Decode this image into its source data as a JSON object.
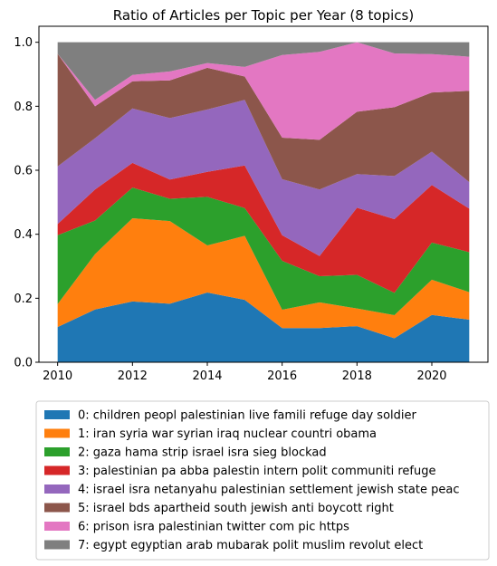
{
  "chart_data": {
    "type": "area",
    "stacked": true,
    "title": "Ratio of Articles per Topic per Year (8 topics)",
    "xlabel": "",
    "ylabel": "",
    "x": [
      2010,
      2011,
      2012,
      2013,
      2014,
      2015,
      2016,
      2017,
      2018,
      2019,
      2020,
      2021
    ],
    "xlim": [
      2009.5,
      2021.5
    ],
    "ylim": [
      0,
      1.05
    ],
    "xticks": [
      2010,
      2012,
      2014,
      2016,
      2018,
      2020
    ],
    "yticks": [
      0.0,
      0.2,
      0.4,
      0.6,
      0.8,
      1.0
    ],
    "xtick_labels": [
      "2010",
      "2012",
      "2014",
      "2016",
      "2018",
      "2020"
    ],
    "ytick_labels": [
      "0.0",
      "0.2",
      "0.4",
      "0.6",
      "0.8",
      "1.0"
    ],
    "grid": false,
    "legend_position": "below",
    "series": [
      {
        "name": "0: children peopl palestinian live famili refuge day soldier",
        "color": "#1f77b4",
        "values": [
          0.11,
          0.165,
          0.19,
          0.183,
          0.218,
          0.195,
          0.107,
          0.107,
          0.113,
          0.075,
          0.148,
          0.133
        ]
      },
      {
        "name": "1: iran syria war syrian iraq nuclear countri obama",
        "color": "#ff7f0e",
        "values": [
          0.072,
          0.173,
          0.26,
          0.258,
          0.147,
          0.2,
          0.057,
          0.08,
          0.055,
          0.072,
          0.11,
          0.086
        ]
      },
      {
        "name": "2: gaza hama strip israel isra sieg blockad",
        "color": "#2ca02c",
        "values": [
          0.215,
          0.105,
          0.096,
          0.07,
          0.152,
          0.087,
          0.153,
          0.082,
          0.105,
          0.07,
          0.116,
          0.125
        ]
      },
      {
        "name": "3: palestinian pa abba palestin intern polit communiti refuge",
        "color": "#d62728",
        "values": [
          0.035,
          0.097,
          0.077,
          0.06,
          0.078,
          0.133,
          0.08,
          0.063,
          0.21,
          0.23,
          0.18,
          0.136
        ]
      },
      {
        "name": "4: israel isra netanyahu palestinian settlement jewish state peac",
        "color": "#9467bd",
        "values": [
          0.18,
          0.16,
          0.17,
          0.192,
          0.195,
          0.205,
          0.175,
          0.208,
          0.105,
          0.135,
          0.104,
          0.083
        ]
      },
      {
        "name": "5: israel bds apartheid south jewish anti boycott right",
        "color": "#8c564b",
        "values": [
          0.352,
          0.1,
          0.085,
          0.118,
          0.13,
          0.073,
          0.13,
          0.155,
          0.195,
          0.215,
          0.185,
          0.285
        ]
      },
      {
        "name": "6: prison isra palestinian twitter com pic https",
        "color": "#e377c2",
        "values": [
          0.0,
          0.02,
          0.02,
          0.028,
          0.015,
          0.03,
          0.258,
          0.275,
          0.217,
          0.168,
          0.12,
          0.107
        ]
      },
      {
        "name": "7: egypt egyptian arab mubarak polit muslim revolut elect",
        "color": "#7f7f7f",
        "values": [
          0.036,
          0.18,
          0.102,
          0.091,
          0.065,
          0.077,
          0.04,
          0.03,
          0.0,
          0.035,
          0.037,
          0.045
        ]
      }
    ]
  }
}
